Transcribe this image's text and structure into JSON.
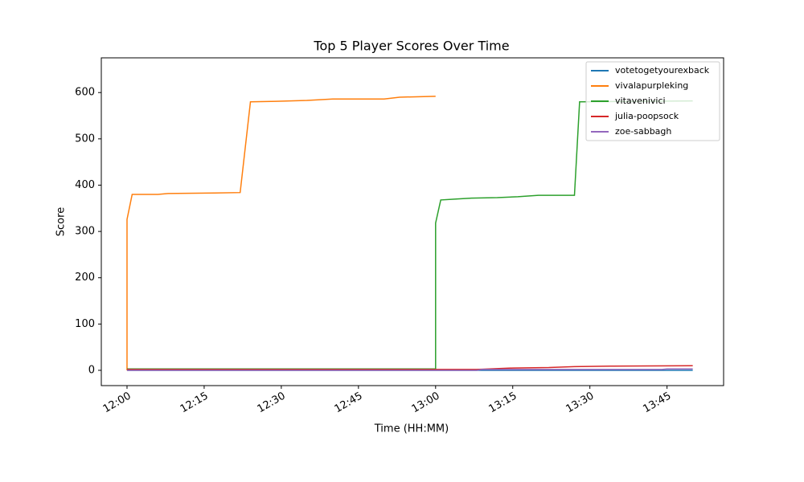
{
  "chart_data": {
    "type": "line",
    "title": "Top 5 Player Scores Over Time",
    "x_label": "Time (HH:MM)",
    "y_label": "Score",
    "xlim": [
      "11:55",
      "13:56"
    ],
    "xticks": [
      "12:00",
      "12:15",
      "12:30",
      "12:45",
      "13:00",
      "13:15",
      "13:30",
      "13:45"
    ],
    "ylim": [
      -33,
      675
    ],
    "yticks": [
      0,
      100,
      200,
      300,
      400,
      500,
      600
    ],
    "legend": "upper right",
    "series": [
      {
        "name": "votetogetyourexback",
        "color": "#1f77b4",
        "x": [
          "12:00",
          "13:50"
        ],
        "values": [
          0,
          0
        ]
      },
      {
        "name": "vivalapurpleking",
        "color": "#ff7f0e",
        "x": [
          "12:00",
          "12:00",
          "12:00",
          "12:01",
          "12:06",
          "12:08",
          "12:17",
          "12:22",
          "12:24",
          "12:29",
          "12:35",
          "12:40",
          "12:50",
          "12:53",
          "13:00"
        ],
        "values": [
          0,
          185,
          326,
          380,
          380,
          382,
          383,
          384,
          580,
          581,
          583,
          586,
          586,
          590,
          592
        ]
      },
      {
        "name": "vitavenivici",
        "color": "#2ca02c",
        "x": [
          "12:00",
          "13:00",
          "13:00",
          "13:00",
          "13:01",
          "13:04",
          "13:07",
          "13:12",
          "13:16",
          "13:20",
          "13:27",
          "13:28",
          "13:50"
        ],
        "values": [
          3,
          3,
          175,
          318,
          368,
          370,
          372,
          373,
          375,
          378,
          378,
          580,
          582
        ]
      },
      {
        "name": "julia-poopsock",
        "color": "#d62728",
        "x": [
          "12:00",
          "13:08",
          "13:15",
          "13:22",
          "13:27",
          "13:34",
          "13:50"
        ],
        "values": [
          2,
          2,
          5,
          6,
          8,
          9,
          10
        ]
      },
      {
        "name": "zoe-sabbagh",
        "color": "#9467bd",
        "x": [
          "12:00",
          "13:08",
          "13:09",
          "13:44",
          "13:45",
          "13:50"
        ],
        "values": [
          0,
          0,
          2,
          2,
          3,
          3
        ]
      }
    ]
  }
}
